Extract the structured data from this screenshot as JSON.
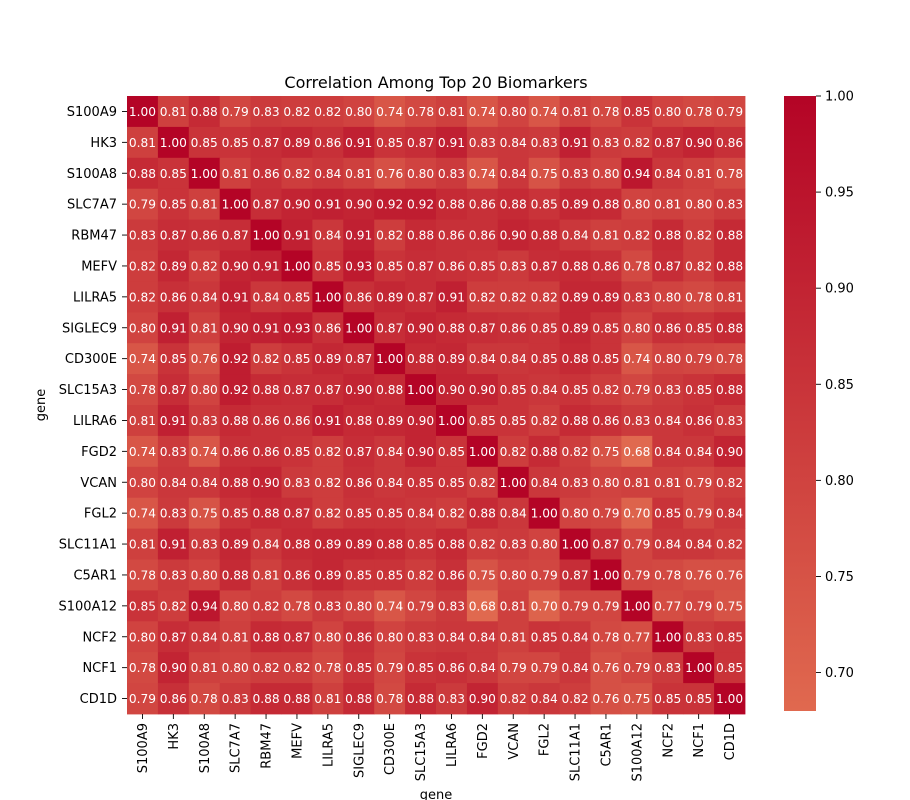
{
  "chart_data": {
    "type": "heatmap",
    "title": "Correlation Among Top 20 Biomarkers",
    "xlabel": "gene",
    "ylabel": "gene",
    "genes": [
      "S100A9",
      "HK3",
      "S100A8",
      "SLC7A7",
      "RBM47",
      "MEFV",
      "LILRA5",
      "SIGLEC9",
      "CD300E",
      "SLC15A3",
      "LILRA6",
      "FGD2",
      "VCAN",
      "FGL2",
      "SLC11A1",
      "C5AR1",
      "S100A12",
      "NCF2",
      "NCF1",
      "CD1D"
    ],
    "matrix": [
      [
        1.0,
        0.81,
        0.88,
        0.79,
        0.83,
        0.82,
        0.82,
        0.8,
        0.74,
        0.78,
        0.81,
        0.74,
        0.8,
        0.74,
        0.81,
        0.78,
        0.85,
        0.8,
        0.78,
        0.79
      ],
      [
        0.81,
        1.0,
        0.85,
        0.85,
        0.87,
        0.89,
        0.86,
        0.91,
        0.85,
        0.87,
        0.91,
        0.83,
        0.84,
        0.83,
        0.91,
        0.83,
        0.82,
        0.87,
        0.9,
        0.86
      ],
      [
        0.88,
        0.85,
        1.0,
        0.81,
        0.86,
        0.82,
        0.84,
        0.81,
        0.76,
        0.8,
        0.83,
        0.74,
        0.84,
        0.75,
        0.83,
        0.8,
        0.94,
        0.84,
        0.81,
        0.78
      ],
      [
        0.79,
        0.85,
        0.81,
        1.0,
        0.87,
        0.9,
        0.91,
        0.9,
        0.92,
        0.92,
        0.88,
        0.86,
        0.88,
        0.85,
        0.89,
        0.88,
        0.8,
        0.81,
        0.8,
        0.83
      ],
      [
        0.83,
        0.87,
        0.86,
        0.87,
        1.0,
        0.91,
        0.84,
        0.91,
        0.82,
        0.88,
        0.86,
        0.86,
        0.9,
        0.88,
        0.84,
        0.81,
        0.82,
        0.88,
        0.82,
        0.88
      ],
      [
        0.82,
        0.89,
        0.82,
        0.9,
        0.91,
        1.0,
        0.85,
        0.93,
        0.85,
        0.87,
        0.86,
        0.85,
        0.83,
        0.87,
        0.88,
        0.86,
        0.78,
        0.87,
        0.82,
        0.88
      ],
      [
        0.82,
        0.86,
        0.84,
        0.91,
        0.84,
        0.85,
        1.0,
        0.86,
        0.89,
        0.87,
        0.91,
        0.82,
        0.82,
        0.82,
        0.89,
        0.89,
        0.83,
        0.8,
        0.78,
        0.81
      ],
      [
        0.8,
        0.91,
        0.81,
        0.9,
        0.91,
        0.93,
        0.86,
        1.0,
        0.87,
        0.9,
        0.88,
        0.87,
        0.86,
        0.85,
        0.89,
        0.85,
        0.8,
        0.86,
        0.85,
        0.88
      ],
      [
        0.74,
        0.85,
        0.76,
        0.92,
        0.82,
        0.85,
        0.89,
        0.87,
        1.0,
        0.88,
        0.89,
        0.84,
        0.84,
        0.85,
        0.88,
        0.85,
        0.74,
        0.8,
        0.79,
        0.78
      ],
      [
        0.78,
        0.87,
        0.8,
        0.92,
        0.88,
        0.87,
        0.87,
        0.9,
        0.88,
        1.0,
        0.9,
        0.9,
        0.85,
        0.84,
        0.85,
        0.82,
        0.79,
        0.83,
        0.85,
        0.88
      ],
      [
        0.81,
        0.91,
        0.83,
        0.88,
        0.86,
        0.86,
        0.91,
        0.88,
        0.89,
        0.9,
        1.0,
        0.85,
        0.85,
        0.82,
        0.88,
        0.86,
        0.83,
        0.84,
        0.86,
        0.83
      ],
      [
        0.74,
        0.83,
        0.74,
        0.86,
        0.86,
        0.85,
        0.82,
        0.87,
        0.84,
        0.9,
        0.85,
        1.0,
        0.82,
        0.88,
        0.82,
        0.75,
        0.68,
        0.84,
        0.84,
        0.9
      ],
      [
        0.8,
        0.84,
        0.84,
        0.88,
        0.9,
        0.83,
        0.82,
        0.86,
        0.84,
        0.85,
        0.85,
        0.82,
        1.0,
        0.84,
        0.83,
        0.8,
        0.81,
        0.81,
        0.79,
        0.82
      ],
      [
        0.74,
        0.83,
        0.75,
        0.85,
        0.88,
        0.87,
        0.82,
        0.85,
        0.85,
        0.84,
        0.82,
        0.88,
        0.84,
        1.0,
        0.8,
        0.79,
        0.7,
        0.85,
        0.79,
        0.84
      ],
      [
        0.81,
        0.91,
        0.83,
        0.89,
        0.84,
        0.88,
        0.89,
        0.89,
        0.88,
        0.85,
        0.88,
        0.82,
        0.83,
        0.8,
        1.0,
        0.87,
        0.79,
        0.84,
        0.84,
        0.82
      ],
      [
        0.78,
        0.83,
        0.8,
        0.88,
        0.81,
        0.86,
        0.89,
        0.85,
        0.85,
        0.82,
        0.86,
        0.75,
        0.8,
        0.79,
        0.87,
        1.0,
        0.79,
        0.78,
        0.76,
        0.76
      ],
      [
        0.85,
        0.82,
        0.94,
        0.8,
        0.82,
        0.78,
        0.83,
        0.8,
        0.74,
        0.79,
        0.83,
        0.68,
        0.81,
        0.7,
        0.79,
        0.79,
        1.0,
        0.77,
        0.79,
        0.75
      ],
      [
        0.8,
        0.87,
        0.84,
        0.81,
        0.88,
        0.87,
        0.8,
        0.86,
        0.8,
        0.83,
        0.84,
        0.84,
        0.81,
        0.85,
        0.84,
        0.78,
        0.77,
        1.0,
        0.83,
        0.85
      ],
      [
        0.78,
        0.9,
        0.81,
        0.8,
        0.82,
        0.82,
        0.78,
        0.85,
        0.79,
        0.85,
        0.86,
        0.84,
        0.79,
        0.79,
        0.84,
        0.76,
        0.79,
        0.83,
        1.0,
        0.85
      ],
      [
        0.79,
        0.86,
        0.78,
        0.83,
        0.88,
        0.88,
        0.81,
        0.88,
        0.78,
        0.88,
        0.83,
        0.9,
        0.82,
        0.84,
        0.82,
        0.76,
        0.75,
        0.85,
        0.85,
        1.0
      ]
    ],
    "value_range": [
      0.68,
      1.0
    ],
    "colorbar_ticks": [
      0.7,
      0.75,
      0.8,
      0.85,
      0.9,
      0.95,
      1.0
    ],
    "colorbar_tick_labels": [
      "0.70",
      "0.75",
      "0.80",
      "0.85",
      "0.90",
      "0.95",
      "1.00"
    ],
    "colormap": "coolwarm",
    "value_format": "2 decimals",
    "colors": {
      "low": "#e0694f",
      "high": "#b40426",
      "annotation": "#ffffff"
    }
  }
}
